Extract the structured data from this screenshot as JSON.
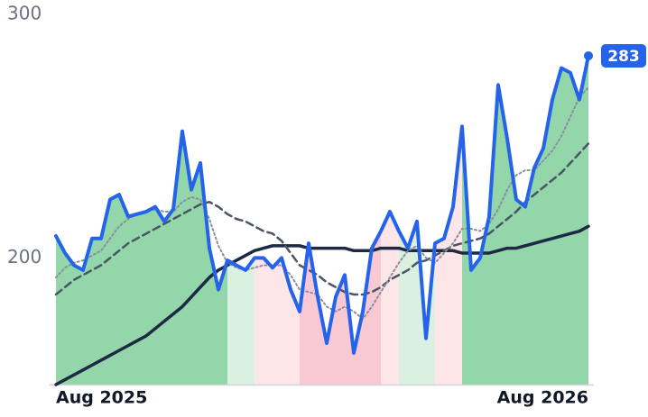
{
  "chart_data": {
    "type": "line",
    "categories": [
      "Aug 2025",
      null,
      null,
      null,
      null,
      null,
      null,
      null,
      null,
      null,
      null,
      null,
      null,
      null,
      null,
      null,
      null,
      null,
      null,
      null,
      null,
      null,
      null,
      null,
      null,
      null,
      null,
      null,
      null,
      null,
      null,
      null,
      null,
      null,
      null,
      null,
      null,
      null,
      null,
      null,
      null,
      null,
      null,
      null,
      null,
      null,
      null,
      null,
      null,
      null,
      null,
      null,
      null,
      null,
      null,
      null,
      null,
      null,
      null,
      "Aug 2026"
    ],
    "fill_colors": [
      "#7fcf9a",
      "#7fcf9a",
      "#7fcf9a",
      "#7fcf9a",
      "#7fcf9a",
      "#7fcf9a",
      "#7fcf9a",
      "#7fcf9a",
      "#7fcf9a",
      "#7fcf9a",
      "#7fcf9a",
      "#7fcf9a",
      "#7fcf9a",
      "#7fcf9a",
      "#7fcf9a",
      "#7fcf9a",
      "#7fcf9a",
      "#7fcf9a",
      "#7fcf9a",
      "#d4eedd",
      "#d4eedd",
      "#d4eedd",
      "#fde0e4",
      "#fde0e4",
      "#fde0e4",
      "#fde0e4",
      "#fde0e4",
      "#f8c0cb",
      "#f8c0cb",
      "#f8c0cb",
      "#f8c0cb",
      "#f8c0cb",
      "#f8c0cb",
      "#f8c0cb",
      "#f8c0cb",
      "#f8c0cb",
      "#fde0e4",
      "#fde0e4",
      "#d4eedd",
      "#d4eedd",
      "#d4eedd",
      "#d4eedd",
      "#fde0e4",
      "#fde0e4",
      "#fde0e4",
      "#7fcf9a",
      "#7fcf9a",
      "#7fcf9a",
      "#7fcf9a",
      "#7fcf9a",
      "#7fcf9a",
      "#7fcf9a",
      "#7fcf9a",
      "#7fcf9a",
      "#7fcf9a",
      "#7fcf9a",
      "#7fcf9a",
      "#7fcf9a",
      "#7fcf9a",
      "#7fcf9a"
    ],
    "series": [
      {
        "color": "#2563eb",
        "style": "solid",
        "width": 4,
        "values": [
          209,
          202,
          197,
          195,
          208,
          208,
          224,
          226,
          217,
          218,
          219,
          221,
          215,
          220,
          252,
          228,
          239,
          204,
          187,
          199,
          197,
          195,
          200,
          200,
          196,
          200,
          187,
          178,
          206,
          184,
          165,
          184,
          193,
          161,
          178,
          204,
          211,
          219,
          211,
          204,
          215,
          167,
          206,
          208,
          221,
          254,
          195,
          200,
          217,
          271,
          249,
          224,
          221,
          237,
          245,
          265,
          278,
          276,
          265,
          283
        ]
      },
      {
        "color": "#8a8f9c",
        "style": "dotted",
        "width": 2,
        "values": [
          192,
          196,
          198,
          199,
          201,
          203,
          208,
          213,
          216,
          218,
          219,
          220,
          219,
          219,
          223,
          225,
          224,
          216,
          205,
          198,
          196,
          195,
          196,
          197,
          197,
          197,
          193,
          187,
          186,
          185,
          180,
          178,
          180,
          178,
          175,
          180,
          186,
          192,
          198,
          203,
          205,
          200,
          198,
          202,
          206,
          212,
          212,
          211,
          214,
          220,
          228,
          234,
          236,
          236,
          240,
          244,
          250,
          258,
          266,
          270
        ]
      },
      {
        "color": "#4b5563",
        "style": "dashed",
        "width": 2.5,
        "values": [
          185,
          188,
          191,
          193,
          195,
          197,
          200,
          203,
          206,
          208,
          210,
          212,
          214,
          216,
          218,
          220,
          222,
          223,
          221,
          218,
          216,
          215,
          213,
          211,
          210,
          207,
          202,
          197,
          195,
          193,
          190,
          188,
          186,
          185,
          185,
          186,
          188,
          191,
          193,
          195,
          198,
          199,
          201,
          203,
          205,
          206,
          207,
          208,
          210,
          213,
          216,
          219,
          223,
          226,
          229,
          232,
          235,
          239,
          243,
          247
        ]
      },
      {
        "color": "#1e2a44",
        "style": "solid",
        "width": 3.5,
        "values": [
          148,
          150,
          152,
          154,
          156,
          158,
          160,
          162,
          164,
          166,
          168,
          171,
          174,
          177,
          180,
          184,
          188,
          192,
          195,
          197,
          199,
          201,
          203,
          204,
          205,
          205,
          205,
          205,
          204,
          204,
          204,
          204,
          204,
          203,
          203,
          203,
          204,
          204,
          204,
          203,
          203,
          203,
          203,
          203,
          203,
          202,
          202,
          202,
          202,
          203,
          204,
          204,
          205,
          206,
          207,
          208,
          209,
          210,
          211,
          213
        ]
      }
    ],
    "ylim": [
      148,
      300
    ],
    "yticks": [
      200,
      300
    ],
    "grid": false
  }
}
